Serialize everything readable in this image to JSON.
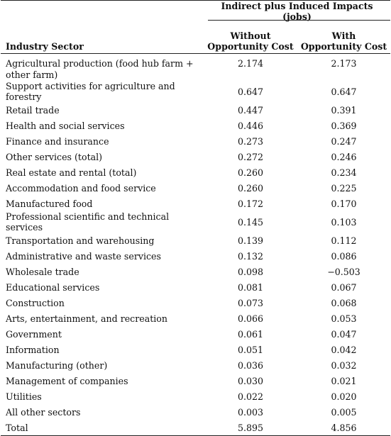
{
  "table": {
    "group_header": "Indirect plus Induced Impacts (jobs)",
    "sector_header": "Industry Sector",
    "col1_header": [
      "Without",
      "Opportunity Cost"
    ],
    "col2_header": [
      "With",
      "Opportunity Cost"
    ],
    "rows": [
      {
        "sector": "Agricultural production (food hub farm + other farm)",
        "without": "2.174",
        "with": "2.173"
      },
      {
        "sector": "Support activities for agriculture and forestry",
        "without": "0.647",
        "with": "0.647"
      },
      {
        "sector": "Retail trade",
        "without": "0.447",
        "with": "0.391"
      },
      {
        "sector": "Health and social services",
        "without": "0.446",
        "with": "0.369"
      },
      {
        "sector": "Finance and insurance",
        "without": "0.273",
        "with": "0.247"
      },
      {
        "sector": "Other services (total)",
        "without": "0.272",
        "with": "0.246"
      },
      {
        "sector": "Real estate and rental (total)",
        "without": "0.260",
        "with": "0.234"
      },
      {
        "sector": "Accommodation and food service",
        "without": "0.260",
        "with": "0.225"
      },
      {
        "sector": "Manufactured food",
        "without": "0.172",
        "with": "0.170"
      },
      {
        "sector": "Professional scientific and technical services",
        "without": "0.145",
        "with": "0.103"
      },
      {
        "sector": "Transportation and warehousing",
        "without": "0.139",
        "with": "0.112"
      },
      {
        "sector": "Administrative and waste services",
        "without": "0.132",
        "with": "0.086"
      },
      {
        "sector": "Wholesale trade",
        "without": "0.098",
        "with": "−0.503"
      },
      {
        "sector": "Educational services",
        "without": "0.081",
        "with": "0.067"
      },
      {
        "sector": "Construction",
        "without": "0.073",
        "with": "0.068"
      },
      {
        "sector": "Arts, entertainment, and recreation",
        "without": "0.066",
        "with": "0.053"
      },
      {
        "sector": "Government",
        "without": "0.061",
        "with": "0.047"
      },
      {
        "sector": "Information",
        "without": "0.051",
        "with": "0.042"
      },
      {
        "sector": "Manufacturing (other)",
        "without": "0.036",
        "with": "0.032"
      },
      {
        "sector": "Management of companies",
        "without": "0.030",
        "with": "0.021"
      },
      {
        "sector": "Utilities",
        "without": "0.022",
        "with": "0.020"
      },
      {
        "sector": "All other sectors",
        "without": "0.003",
        "with": "0.005"
      },
      {
        "sector": "Total",
        "without": "5.895",
        "with": "4.856"
      }
    ]
  }
}
